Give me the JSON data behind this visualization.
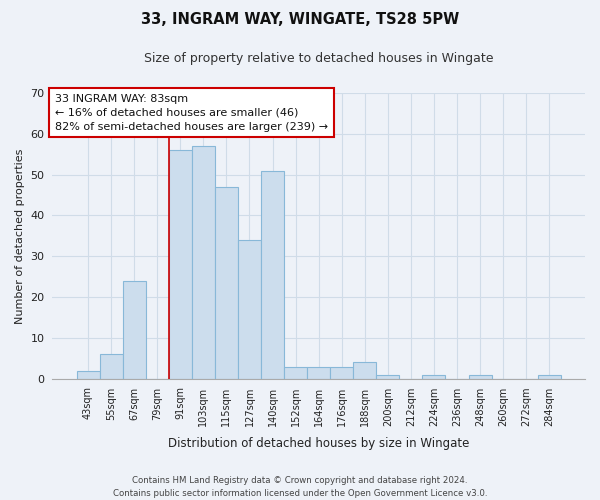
{
  "title": "33, INGRAM WAY, WINGATE, TS28 5PW",
  "subtitle": "Size of property relative to detached houses in Wingate",
  "xlabel": "Distribution of detached houses by size in Wingate",
  "ylabel": "Number of detached properties",
  "bar_labels": [
    "43sqm",
    "55sqm",
    "67sqm",
    "79sqm",
    "91sqm",
    "103sqm",
    "115sqm",
    "127sqm",
    "140sqm",
    "152sqm",
    "164sqm",
    "176sqm",
    "188sqm",
    "200sqm",
    "212sqm",
    "224sqm",
    "236sqm",
    "248sqm",
    "260sqm",
    "272sqm",
    "284sqm"
  ],
  "bar_values": [
    2,
    6,
    24,
    0,
    56,
    57,
    47,
    34,
    51,
    3,
    3,
    3,
    4,
    1,
    0,
    1,
    0,
    1,
    0,
    0,
    1
  ],
  "bar_color": "#ccdded",
  "bar_edge_color": "#88b8d8",
  "vline_color": "#cc0000",
  "annotation_text_line1": "33 INGRAM WAY: 83sqm",
  "annotation_text_line2": "← 16% of detached houses are smaller (46)",
  "annotation_text_line3": "82% of semi-detached houses are larger (239) →",
  "ylim": [
    0,
    70
  ],
  "yticks": [
    0,
    10,
    20,
    30,
    40,
    50,
    60,
    70
  ],
  "footer_line1": "Contains HM Land Registry data © Crown copyright and database right 2024.",
  "footer_line2": "Contains public sector information licensed under the Open Government Licence v3.0.",
  "grid_color": "#d0dce8",
  "background_color": "#eef2f8"
}
